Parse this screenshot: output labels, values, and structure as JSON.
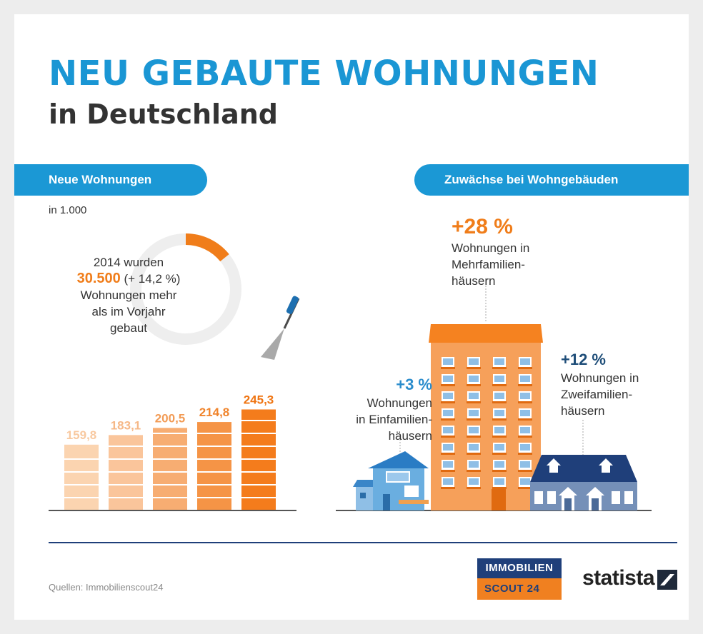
{
  "header": {
    "title": "NEU GEBAUTE WOHNUNGEN",
    "subtitle": "in Deutschland"
  },
  "left_panel": {
    "pill_label": "Neue Wohnungen",
    "unit": "in 1.000",
    "donut": {
      "line1": "2014 wurden",
      "highlight": "30.500",
      "highlight_suffix": "(+ 14,2 %)",
      "line3": "Wohnungen mehr",
      "line4": "als im Vorjahr",
      "line5": "gebaut",
      "fraction": 0.142
    }
  },
  "right_panel": {
    "pill_label": "Zuwächse bei Wohngebäuden",
    "mehrfamilien": {
      "pct": "+28 %",
      "l1": "Wohnungen in",
      "l2": "Mehrfamilien-",
      "l3": "häusern"
    },
    "einfamilien": {
      "pct": "+3 %",
      "l1": "Wohnungen",
      "l2": "in Einfamilien-",
      "l3": "häusern"
    },
    "zweifamilien": {
      "pct": "+12 %",
      "l1": "Wohnungen in",
      "l2": "Zweifamilien-",
      "l3": "häusern"
    }
  },
  "footer": {
    "source": "Quellen: Immobilienscout24",
    "logo_top": "IMMOBILIEN",
    "logo_bottom": "SCOUT 24",
    "statista": "statista"
  },
  "colors": {
    "blue": "#1b98d5",
    "orange": "#f07d1a",
    "navy": "#1f3f7a"
  },
  "chart_data": {
    "type": "bar",
    "values": [
      159.8,
      183.1,
      200.5,
      214.8,
      245.3
    ],
    "value_labels": [
      "159,8",
      "183,1",
      "200,5",
      "214,8",
      "245,3"
    ],
    "ylim": [
      0,
      260
    ],
    "bar_colors": [
      "#fbd4b0",
      "#fac59b",
      "#f7ad72",
      "#f59446",
      "#f47c1c"
    ],
    "label_colors": [
      "#f8c9a0",
      "#f6b887",
      "#f29b55",
      "#f0842c",
      "#ef7411"
    ]
  }
}
